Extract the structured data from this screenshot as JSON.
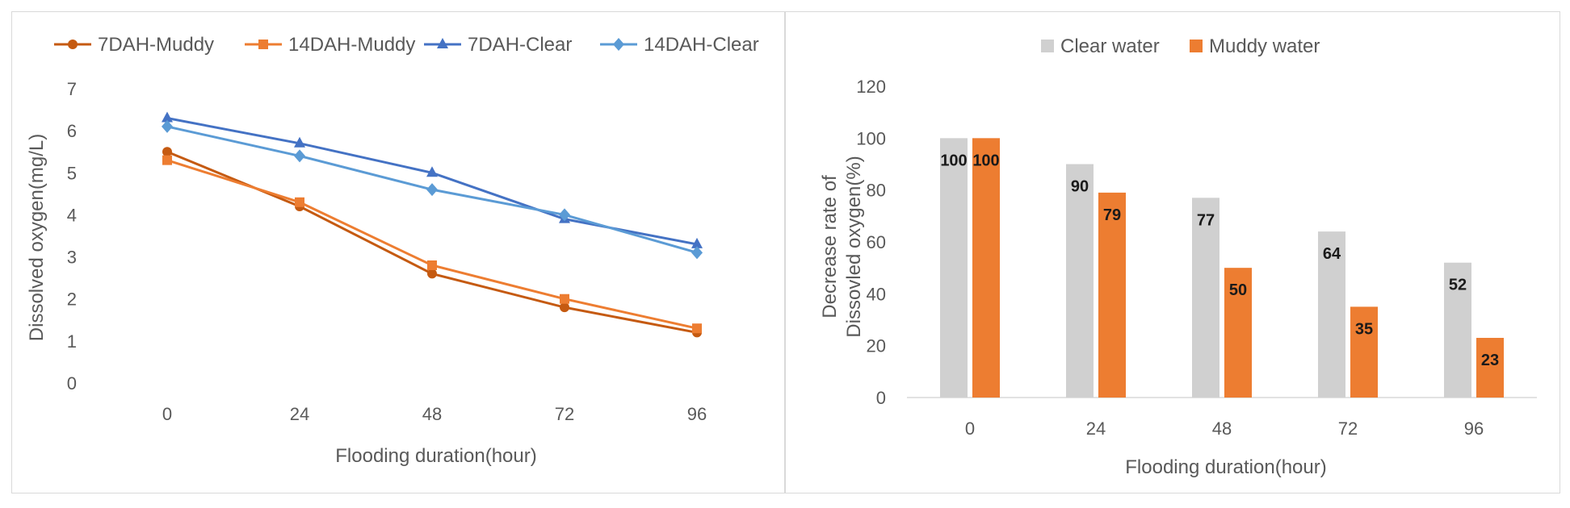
{
  "chart_data": [
    {
      "type": "line",
      "x": [
        0,
        24,
        48,
        72,
        96
      ],
      "xlabel": "Flooding duration(hour)",
      "ylabel": "Dissolved oxygen(mg/L)",
      "ylim": [
        0,
        7
      ],
      "yticks": [
        0,
        1,
        2,
        3,
        4,
        5,
        6,
        7
      ],
      "legend_position": "top",
      "grid": false,
      "series": [
        {
          "name": "7DAH-Muddy",
          "values": [
            5.5,
            4.2,
            2.6,
            1.8,
            1.2
          ],
          "color": "#C55A11",
          "marker": "circle"
        },
        {
          "name": "14DAH-Muddy",
          "values": [
            5.3,
            4.3,
            2.8,
            2.0,
            1.3
          ],
          "color": "#ED7D31",
          "marker": "square"
        },
        {
          "name": "7DAH-Clear",
          "values": [
            6.3,
            5.7,
            5.0,
            3.9,
            3.3
          ],
          "color": "#4472C4",
          "marker": "triangle"
        },
        {
          "name": "14DAH-Clear",
          "values": [
            6.1,
            5.4,
            4.6,
            4.0,
            3.1
          ],
          "color": "#5B9BD5",
          "marker": "diamond"
        }
      ]
    },
    {
      "type": "bar",
      "categories": [
        "0",
        "24",
        "48",
        "72",
        "96"
      ],
      "xlabel": "Flooding duration(hour)",
      "ylabel_lines": [
        "Decrease rate of",
        "Dissovled oxygen(%)"
      ],
      "ylim": [
        0,
        120
      ],
      "yticks": [
        0,
        20,
        40,
        60,
        80,
        100,
        120
      ],
      "legend_position": "top",
      "grid": false,
      "series": [
        {
          "name": "Clear water",
          "values": [
            100,
            90,
            77,
            64,
            52
          ],
          "color": "#D0D0D0"
        },
        {
          "name": "Muddy water",
          "values": [
            100,
            79,
            50,
            35,
            23
          ],
          "color": "#ED7D31"
        }
      ]
    }
  ]
}
